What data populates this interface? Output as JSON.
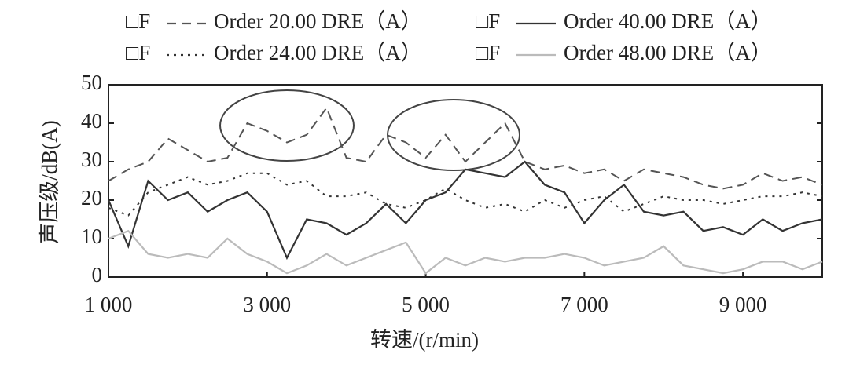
{
  "chart_data": {
    "type": "line",
    "xlabel": "转速/(r/min)",
    "ylabel": "声压级/dB(A)",
    "legend_prefix": "□F",
    "x": [
      1000,
      1250,
      1500,
      1750,
      2000,
      2250,
      2500,
      2750,
      3000,
      3250,
      3500,
      3750,
      4000,
      4250,
      4500,
      4750,
      5000,
      5250,
      5500,
      5750,
      6000,
      6250,
      6500,
      6750,
      7000,
      7250,
      7500,
      7750,
      8000,
      8250,
      8500,
      8750,
      9000,
      9250,
      9500,
      9750,
      10000
    ],
    "series": [
      {
        "name": "Order 20.00 DRE（A）",
        "color": "#555555",
        "style": "dashed",
        "values": [
          25,
          28,
          30,
          36,
          33,
          30,
          31,
          40,
          38,
          35,
          37,
          44,
          31,
          30,
          37,
          35,
          31,
          37,
          30,
          35,
          40,
          30,
          28,
          29,
          27,
          28,
          25,
          28,
          27,
          26,
          24,
          23,
          24,
          27,
          25,
          26,
          24
        ]
      },
      {
        "name": "Order 40.00 DRE（A）",
        "color": "#333333",
        "style": "solid",
        "values": [
          20,
          8,
          25,
          20,
          22,
          17,
          20,
          22,
          17,
          5,
          15,
          14,
          11,
          14,
          19,
          14,
          20,
          22,
          28,
          27,
          26,
          30,
          24,
          22,
          14,
          20,
          24,
          17,
          16,
          17,
          12,
          13,
          11,
          15,
          12,
          14,
          15
        ]
      },
      {
        "name": "Order 24.00 DRE（A）",
        "color": "#333333",
        "style": "dotted",
        "values": [
          18,
          16,
          22,
          24,
          26,
          24,
          25,
          27,
          27,
          24,
          25,
          21,
          21,
          22,
          19,
          18,
          20,
          23,
          20,
          18,
          19,
          17,
          20,
          18,
          20,
          21,
          17,
          19,
          21,
          20,
          20,
          19,
          20,
          21,
          21,
          22,
          21
        ]
      },
      {
        "name": "Order 48.00 DRE（A）",
        "color": "#bbbbbb",
        "style": "solid",
        "values": [
          10,
          12,
          6,
          5,
          6,
          5,
          10,
          6,
          4,
          1,
          3,
          6,
          3,
          5,
          7,
          9,
          1,
          5,
          3,
          5,
          4,
          5,
          5,
          6,
          5,
          3,
          4,
          5,
          8,
          3,
          2,
          1,
          2,
          4,
          4,
          2,
          4
        ]
      }
    ],
    "xlim": [
      1000,
      10000
    ],
    "xticks": [
      {
        "value": 1000,
        "label": "1 000"
      },
      {
        "value": 3000,
        "label": "3 000"
      },
      {
        "value": 5000,
        "label": "5 000"
      },
      {
        "value": 7000,
        "label": "7 000"
      },
      {
        "value": 9000,
        "label": "9 000"
      }
    ],
    "ylim": [
      0,
      50
    ],
    "yticks": [
      0,
      10,
      20,
      30,
      40,
      50
    ]
  }
}
